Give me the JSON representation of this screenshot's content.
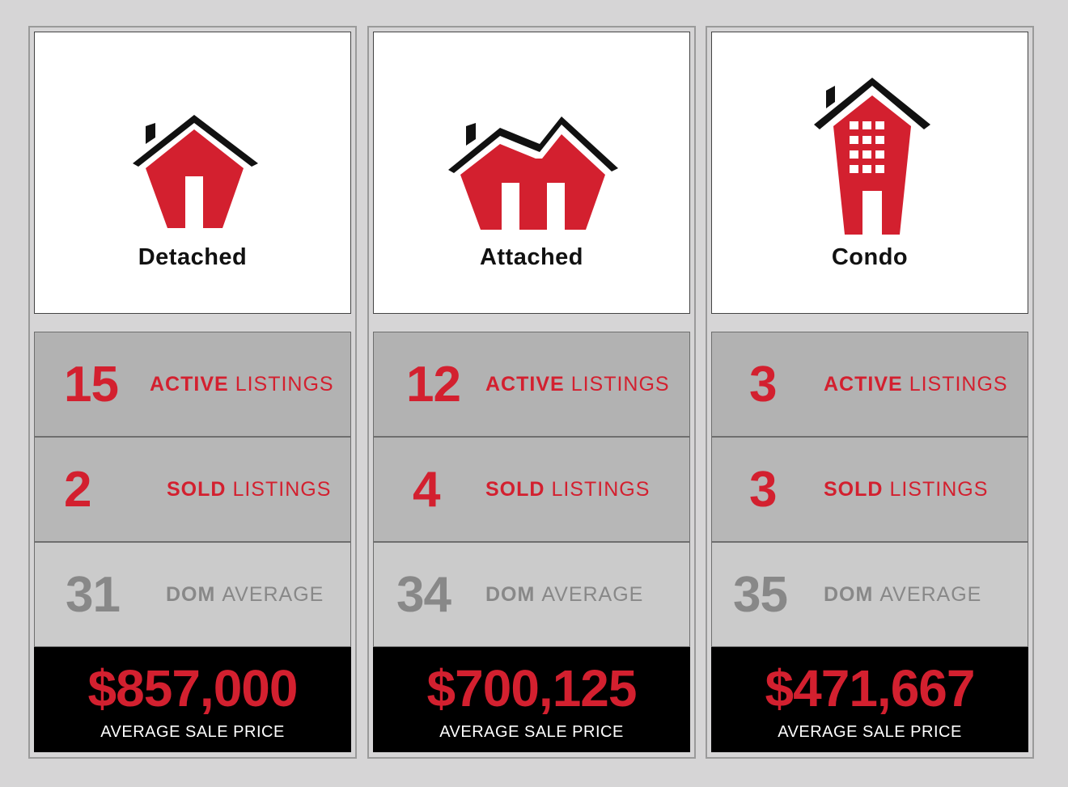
{
  "columns": [
    {
      "type": "Detached",
      "icon": "detached-house-icon",
      "active": {
        "value": "15",
        "bold": "ACTIVE",
        "rest": "LISTINGS"
      },
      "sold": {
        "value": "2",
        "bold": "SOLD",
        "rest": "LISTINGS"
      },
      "dom": {
        "value": "31",
        "bold": "DOM",
        "rest": "AVERAGE"
      },
      "price": {
        "value": "$857,000",
        "label": "AVERAGE SALE PRICE"
      }
    },
    {
      "type": "Attached",
      "icon": "attached-house-icon",
      "active": {
        "value": "12",
        "bold": "ACTIVE",
        "rest": "LISTINGS"
      },
      "sold": {
        "value": "4",
        "bold": "SOLD",
        "rest": "LISTINGS"
      },
      "dom": {
        "value": "34",
        "bold": "DOM",
        "rest": "AVERAGE"
      },
      "price": {
        "value": "$700,125",
        "label": "AVERAGE SALE PRICE"
      }
    },
    {
      "type": "Condo",
      "icon": "condo-building-icon",
      "active": {
        "value": "3",
        "bold": "ACTIVE",
        "rest": "LISTINGS"
      },
      "sold": {
        "value": "3",
        "bold": "SOLD",
        "rest": "LISTINGS"
      },
      "dom": {
        "value": "35",
        "bold": "DOM",
        "rest": "AVERAGE"
      },
      "price": {
        "value": "$471,667",
        "label": "AVERAGE SALE PRICE"
      }
    }
  ],
  "colors": {
    "accent": "#d3202f",
    "dom": "#888888",
    "price_bg": "#000000"
  }
}
